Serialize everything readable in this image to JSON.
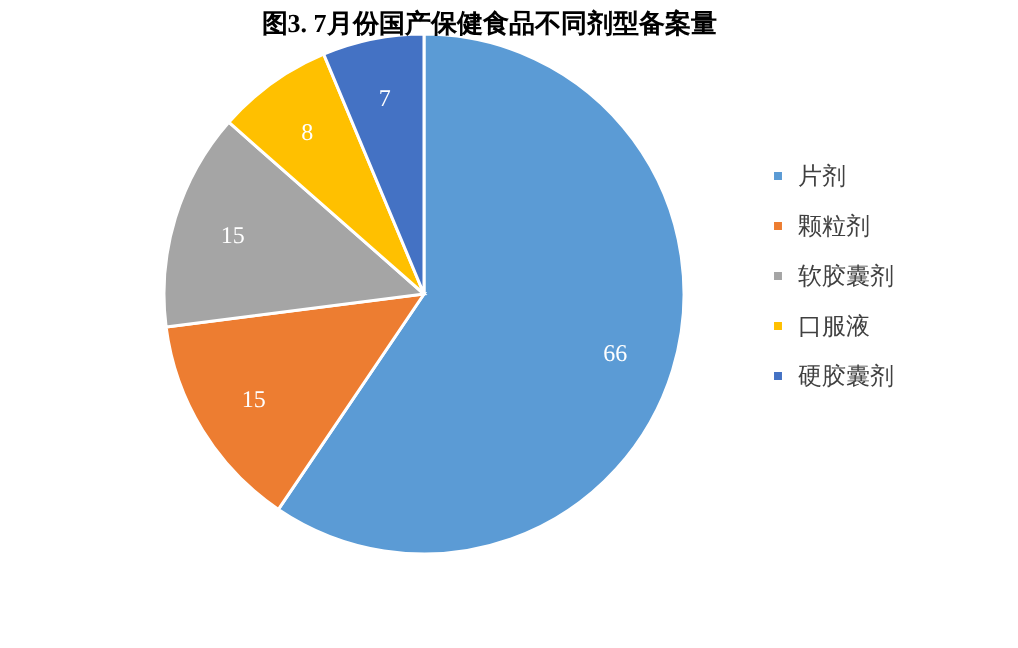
{
  "chart_data": {
    "type": "pie",
    "title": "图3. 7月份国产保健食品不同剂型备案量",
    "categories": [
      "片剂",
      "颗粒剂",
      "软胶囊剂",
      "口服液",
      "硬胶囊剂"
    ],
    "values": [
      66,
      15,
      15,
      8,
      7
    ],
    "colors": [
      "#5b9bd5",
      "#ed7d31",
      "#a5a5a5",
      "#ffc000",
      "#4472c4"
    ],
    "data_labels": true,
    "legend": "right"
  }
}
